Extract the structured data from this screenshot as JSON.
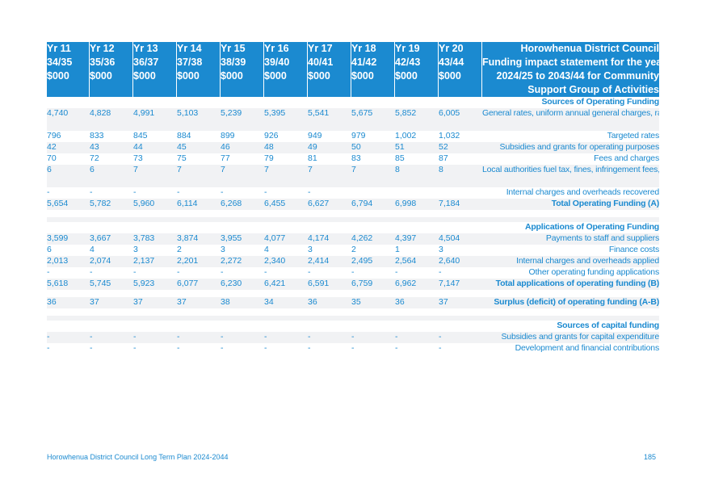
{
  "header": {
    "years": [
      {
        "yr": "Yr 11",
        "span": "34/35",
        "unit": "$000"
      },
      {
        "yr": "Yr 12",
        "span": "35/36",
        "unit": "$000"
      },
      {
        "yr": "Yr 13",
        "span": "36/37",
        "unit": "$000"
      },
      {
        "yr": "Yr 14",
        "span": "37/38",
        "unit": "$000"
      },
      {
        "yr": "Yr 15",
        "span": "38/39",
        "unit": "$000"
      },
      {
        "yr": "Yr 16",
        "span": "39/40",
        "unit": "$000"
      },
      {
        "yr": "Yr 17",
        "span": "40/41",
        "unit": "$000"
      },
      {
        "yr": "Yr 18",
        "span": "41/42",
        "unit": "$000"
      },
      {
        "yr": "Yr 19",
        "span": "42/43",
        "unit": "$000"
      },
      {
        "yr": "Yr 20",
        "span": "43/44",
        "unit": "$000"
      }
    ],
    "title_lines": [
      "Horowhenua District Council",
      "Funding impact statement for the years",
      "2024/25 to 2043/44 for Community",
      "Support Group of Activities"
    ]
  },
  "rows": [
    {
      "kind": "section",
      "label": "Sources of Operating Funding",
      "values": []
    },
    {
      "kind": "data",
      "shade": true,
      "tall": true,
      "label": "General rates, uniform annual general charges, rates penalties",
      "values": [
        "4,740",
        "4,828",
        "4,991",
        "5,103",
        "5,239",
        "5,395",
        "5,541",
        "5,675",
        "5,852",
        "6,005"
      ]
    },
    {
      "kind": "data",
      "label": "Targeted rates",
      "values": [
        "796",
        "833",
        "845",
        "884",
        "899",
        "926",
        "949",
        "979",
        "1,002",
        "1,032"
      ]
    },
    {
      "kind": "data",
      "shade": true,
      "label": "Subsidies and grants for operating purposes",
      "values": [
        "42",
        "43",
        "44",
        "45",
        "46",
        "48",
        "49",
        "50",
        "51",
        "52"
      ]
    },
    {
      "kind": "data",
      "label": "Fees and charges",
      "values": [
        "70",
        "72",
        "73",
        "75",
        "77",
        "79",
        "81",
        "83",
        "85",
        "87"
      ]
    },
    {
      "kind": "data",
      "shade": true,
      "tall": true,
      "label": "Local authorities fuel tax, fines, infringement fees, and other receipts",
      "values": [
        "6",
        "6",
        "7",
        "7",
        "7",
        "7",
        "7",
        "7",
        "8",
        "8"
      ]
    },
    {
      "kind": "data",
      "label": "Internal charges and overheads recovered",
      "values": [
        "-",
        "-",
        "-",
        "-",
        "-",
        "-",
        "-",
        "",
        "",
        ""
      ]
    },
    {
      "kind": "total",
      "shade": true,
      "label": "Total Operating Funding (A)",
      "values": [
        "5,654",
        "5,782",
        "5,960",
        "6,114",
        "6,268",
        "6,455",
        "6,627",
        "6,794",
        "6,998",
        "7,184"
      ]
    },
    {
      "kind": "blank"
    },
    {
      "kind": "gap",
      "shade": true
    },
    {
      "kind": "section",
      "label": "Applications of Operating Funding",
      "values": []
    },
    {
      "kind": "data",
      "shade": true,
      "label": "Payments to staff and suppliers",
      "values": [
        "3,599",
        "3,667",
        "3,783",
        "3,874",
        "3,955",
        "4,077",
        "4,174",
        "4,262",
        "4,397",
        "4,504"
      ]
    },
    {
      "kind": "data",
      "label": "Finance costs",
      "values": [
        "6",
        "4",
        "3",
        "2",
        "3",
        "4",
        "3",
        "2",
        "1",
        "3"
      ]
    },
    {
      "kind": "data",
      "shade": true,
      "label": "Internal charges and overheads applied",
      "values": [
        "2,013",
        "2,074",
        "2,137",
        "2,201",
        "2,272",
        "2,340",
        "2,414",
        "2,495",
        "2,564",
        "2,640"
      ]
    },
    {
      "kind": "data",
      "label": "Other operating funding applications",
      "values": [
        "-",
        "-",
        "-",
        "-",
        "-",
        "-",
        "-",
        "-",
        "-",
        "-"
      ]
    },
    {
      "kind": "total",
      "shade": true,
      "label": "Total applications of operating funding (B)",
      "values": [
        "5,618",
        "5,745",
        "5,923",
        "6,077",
        "6,230",
        "6,421",
        "6,591",
        "6,759",
        "6,962",
        "7,147"
      ]
    },
    {
      "kind": "blank"
    },
    {
      "kind": "total",
      "shade": true,
      "label": "Surplus (deficit) of operating funding (A-B)",
      "values": [
        "36",
        "37",
        "37",
        "37",
        "38",
        "34",
        "36",
        "35",
        "36",
        "37"
      ]
    },
    {
      "kind": "blank"
    },
    {
      "kind": "gap",
      "shade": true
    },
    {
      "kind": "section",
      "label": "Sources of capital funding",
      "values": []
    },
    {
      "kind": "data",
      "shade": true,
      "label": "Subsidies and grants for capital expenditure",
      "values": [
        "-",
        "-",
        "-",
        "-",
        "-",
        "-",
        "-",
        "-",
        "-",
        "-"
      ]
    },
    {
      "kind": "data",
      "label": "Development and financial contributions",
      "values": [
        "-",
        "-",
        "-",
        "-",
        "-",
        "-",
        "-",
        "-",
        "-",
        "-"
      ]
    }
  ],
  "footer": {
    "left": "Horowhenua District Council Long Term Plan 2024-2044",
    "page": "185"
  }
}
